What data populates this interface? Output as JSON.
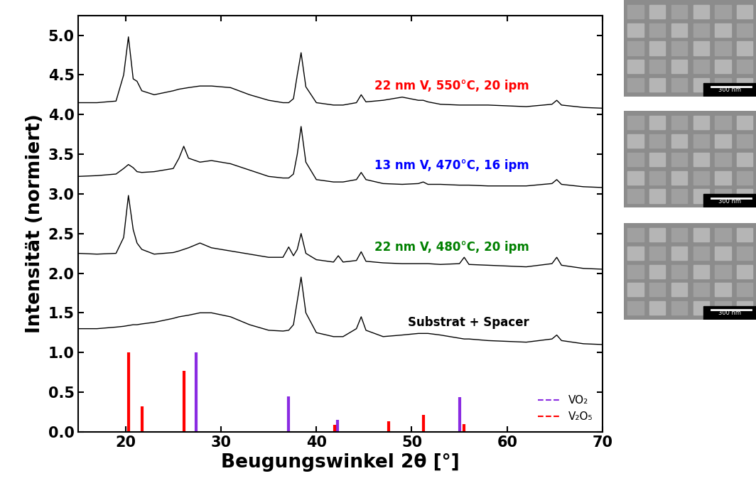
{
  "chart_data": {
    "type": "line",
    "xlabel": "Beugungswinkel 2θ [°]",
    "ylabel": "Intensität (normiert)",
    "xlim": [
      15,
      70
    ],
    "xticks": [
      20,
      30,
      40,
      50,
      60,
      70
    ],
    "ylim": [
      0,
      5.25
    ],
    "yticks": [
      {
        "value": 0,
        "label": "0.0"
      },
      {
        "value": 0.5,
        "label": "0.5"
      },
      {
        "value": 1,
        "label": "1.0"
      },
      {
        "value": 1.5,
        "label": "1.5"
      },
      {
        "value": 2,
        "label": "2.0"
      },
      {
        "value": 2.5,
        "label": "2.5"
      },
      {
        "value": 3,
        "label": "3.0"
      },
      {
        "value": 3.5,
        "label": "3.5"
      },
      {
        "value": 4,
        "label": "4.0"
      },
      {
        "value": 4.5,
        "label": "4.5"
      },
      {
        "value": 5,
        "label": "5.0"
      }
    ],
    "grid": false,
    "legend": "lower right",
    "x": [
      15,
      17,
      19,
      19.8,
      20.3,
      20.8,
      21.2,
      21.7,
      23,
      25,
      25.6,
      26.1,
      26.6,
      27.8,
      29,
      31,
      33,
      35,
      36.5,
      37.1,
      37.6,
      38.0,
      38.4,
      38.9,
      40,
      41.8,
      42.3,
      42.8,
      44.2,
      44.7,
      45.2,
      47,
      49,
      50.7,
      51.2,
      51.7,
      53,
      55,
      55.5,
      56,
      58,
      60,
      62,
      64.7,
      65.2,
      65.7,
      68,
      70
    ],
    "series": [
      {
        "name": "22 nm V, 550°C, 20 ipm",
        "color": "#ff0000",
        "values": [
          4.15,
          4.15,
          4.17,
          4.5,
          4.98,
          4.45,
          4.42,
          4.3,
          4.25,
          4.3,
          4.32,
          4.33,
          4.34,
          4.36,
          4.36,
          4.34,
          4.25,
          4.18,
          4.15,
          4.15,
          4.2,
          4.5,
          4.78,
          4.35,
          4.15,
          4.12,
          4.12,
          4.12,
          4.15,
          4.25,
          4.16,
          4.18,
          4.22,
          4.18,
          4.18,
          4.16,
          4.13,
          4.12,
          4.12,
          4.12,
          4.12,
          4.11,
          4.1,
          4.13,
          4.18,
          4.12,
          4.09,
          4.08
        ]
      },
      {
        "name": "13 nm V, 470°C, 16 ipm",
        "color": "#0000ff",
        "values": [
          3.22,
          3.23,
          3.25,
          3.32,
          3.37,
          3.33,
          3.28,
          3.27,
          3.28,
          3.32,
          3.45,
          3.6,
          3.45,
          3.4,
          3.42,
          3.38,
          3.3,
          3.22,
          3.2,
          3.2,
          3.25,
          3.5,
          3.85,
          3.4,
          3.18,
          3.15,
          3.15,
          3.15,
          3.18,
          3.27,
          3.18,
          3.13,
          3.12,
          3.13,
          3.15,
          3.12,
          3.12,
          3.11,
          3.11,
          3.11,
          3.1,
          3.1,
          3.1,
          3.13,
          3.18,
          3.12,
          3.09,
          3.08
        ]
      },
      {
        "name": "22 nm V, 480°C, 20 ipm",
        "color": "#008000",
        "values": [
          2.25,
          2.24,
          2.25,
          2.45,
          2.98,
          2.55,
          2.38,
          2.3,
          2.24,
          2.26,
          2.28,
          2.3,
          2.32,
          2.38,
          2.32,
          2.28,
          2.24,
          2.2,
          2.2,
          2.33,
          2.22,
          2.3,
          2.5,
          2.25,
          2.17,
          2.14,
          2.22,
          2.14,
          2.16,
          2.27,
          2.15,
          2.13,
          2.12,
          2.12,
          2.12,
          2.12,
          2.11,
          2.12,
          2.2,
          2.11,
          2.1,
          2.09,
          2.08,
          2.12,
          2.2,
          2.1,
          2.06,
          2.05
        ]
      },
      {
        "name": "Substrat + Spacer",
        "color": "#000000",
        "values": [
          1.3,
          1.3,
          1.32,
          1.33,
          1.34,
          1.35,
          1.35,
          1.36,
          1.38,
          1.43,
          1.45,
          1.46,
          1.47,
          1.5,
          1.5,
          1.45,
          1.35,
          1.28,
          1.27,
          1.28,
          1.35,
          1.65,
          1.95,
          1.5,
          1.25,
          1.2,
          1.2,
          1.2,
          1.3,
          1.45,
          1.28,
          1.2,
          1.22,
          1.24,
          1.24,
          1.24,
          1.22,
          1.18,
          1.17,
          1.17,
          1.15,
          1.14,
          1.13,
          1.17,
          1.22,
          1.15,
          1.11,
          1.1
        ]
      }
    ],
    "references": [
      {
        "name": "VO₂",
        "color": "#8a2be2",
        "line_style": "dashed",
        "x": [
          27.4,
          37.1,
          42.2,
          55.0
        ],
        "values": [
          1.0,
          0.45,
          0.15,
          0.44
        ]
      },
      {
        "name": "V₂O₅",
        "color": "#ff0000",
        "line_style": "dashed",
        "x": [
          20.3,
          21.7,
          26.1,
          41.9,
          47.6,
          51.2,
          55.5
        ],
        "values": [
          1.0,
          0.32,
          0.77,
          0.09,
          0.13,
          0.21,
          0.1
        ]
      }
    ]
  },
  "sem_images": [
    {
      "scale_label": "300 nm"
    },
    {
      "scale_label": "300 nm"
    },
    {
      "scale_label": "300 nm"
    }
  ]
}
